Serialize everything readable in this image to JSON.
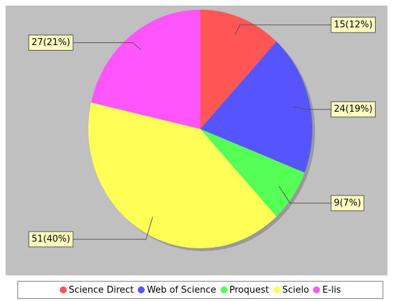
{
  "chart_data": {
    "type": "pie",
    "categories": [
      "Science Direct",
      "Web of Science",
      "Proquest",
      "Scielo",
      "E-lis"
    ],
    "values": [
      15,
      24,
      9,
      51,
      27
    ],
    "value_labels": [
      "15(12%)",
      "24(19%)",
      "9(7%)",
      "51(40%)",
      "27(21%)"
    ],
    "colors": [
      "#ff5555",
      "#5555ff",
      "#55ff55",
      "#ffff55",
      "#ff55ff"
    ],
    "legend": "bottom"
  }
}
